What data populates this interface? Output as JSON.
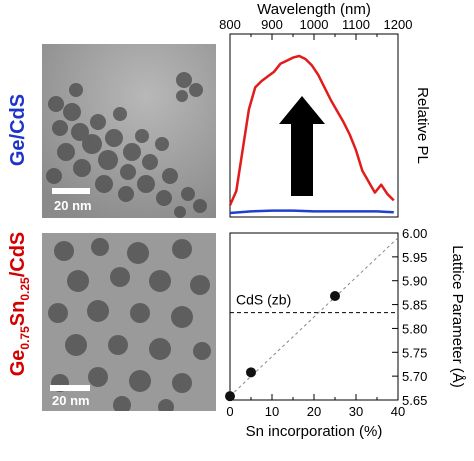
{
  "labels": {
    "top_sample": "Ge/CdS",
    "bottom_sample_base": "Ge",
    "bottom_sample_sub1": "0.75",
    "bottom_sample_mid": "Sn",
    "bottom_sample_sub2": "0.25",
    "bottom_sample_end": "/CdS"
  },
  "tem_images": {
    "top_scale_label": "20 nm",
    "bottom_scale_label": "20 nm"
  },
  "colors": {
    "pl_curve_red": "#e21b1b",
    "pl_curve_blue": "#1f3fd0",
    "ge_label": "#1f35c9",
    "gesn_label": "#d40000",
    "arrow": "#000000"
  },
  "chart_data": [
    {
      "type": "line",
      "xlabel": "Wavelength (nm)",
      "ylabel": "Relative PL",
      "xlim": [
        800,
        1200
      ],
      "x_ticks": [
        "800",
        "900",
        "1000",
        "1100",
        "1200"
      ],
      "x_axis_position": "top",
      "series": [
        {
          "color": "#e21b1b",
          "x": [
            800,
            815,
            830,
            845,
            860,
            875,
            890,
            905,
            920,
            935,
            950,
            965,
            980,
            995,
            1010,
            1025,
            1040,
            1055,
            1070,
            1085,
            1100,
            1115,
            1130,
            1145,
            1160,
            1175,
            1190
          ],
          "y": [
            0.05,
            0.14,
            0.4,
            0.66,
            0.8,
            0.84,
            0.87,
            0.9,
            0.95,
            0.97,
            0.99,
            1.0,
            0.98,
            0.94,
            0.88,
            0.8,
            0.72,
            0.65,
            0.58,
            0.5,
            0.4,
            0.27,
            0.2,
            0.13,
            0.18,
            0.12,
            0.08
          ]
        },
        {
          "color": "#1f3fd0",
          "x": [
            800,
            850,
            900,
            950,
            1000,
            1050,
            1100,
            1150,
            1190
          ],
          "y": [
            0.0,
            0.01,
            0.015,
            0.015,
            0.01,
            0.01,
            0.01,
            0.01,
            0.005
          ]
        }
      ]
    },
    {
      "type": "scatter",
      "xlabel": "Sn incorporation (%)",
      "ylabel": "Lattice Parameter (Å)",
      "xlim": [
        0,
        40
      ],
      "ylim": [
        5.65,
        6.0
      ],
      "x_ticks": [
        "0",
        "10",
        "20",
        "30",
        "40"
      ],
      "y_ticks": [
        "5.65",
        "5.70",
        "5.75",
        "5.80",
        "5.85",
        "5.90",
        "5.95",
        "6.00"
      ],
      "y_axis_position": "right",
      "points": {
        "x": [
          0,
          5,
          25
        ],
        "y": [
          5.658,
          5.708,
          5.868
        ]
      },
      "trendline": {
        "x": [
          0,
          40
        ],
        "y": [
          5.658,
          5.99
        ]
      },
      "reference_line": {
        "y": 5.833,
        "label": "CdS (zb)"
      }
    }
  ]
}
